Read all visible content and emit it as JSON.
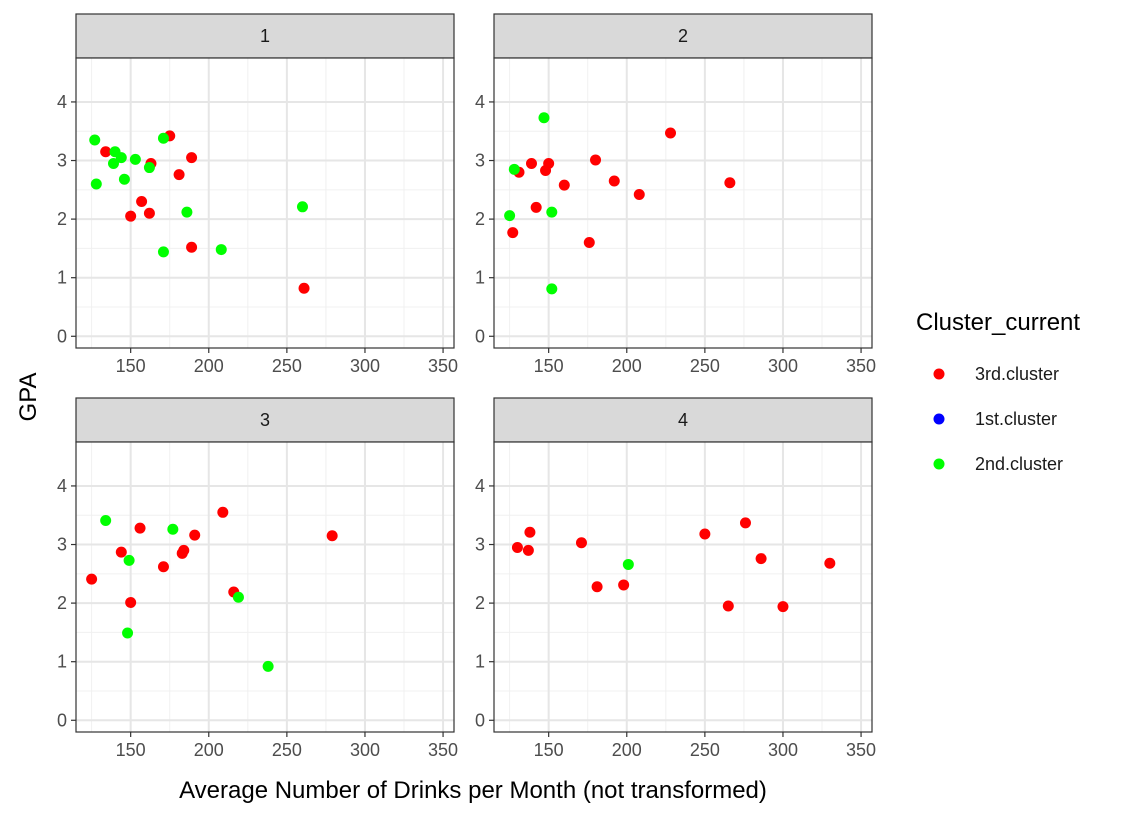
{
  "chart_data": {
    "type": "scatter",
    "facet_var": "",
    "xlabel": "Average Number of Drinks per Month (not transformed)",
    "ylabel": "GPA",
    "xlim": [
      115,
      357
    ],
    "ylim": [
      -0.2,
      4.75
    ],
    "x_ticks": [
      150,
      200,
      250,
      300,
      350
    ],
    "y_ticks": [
      0,
      1,
      2,
      3,
      4
    ],
    "grid": true,
    "legend": {
      "title": "Cluster_current",
      "position": "right",
      "entries": [
        {
          "label": "3rd.cluster",
          "color": "#ff0000"
        },
        {
          "label": "1st.cluster",
          "color": "#0000ff"
        },
        {
          "label": "2nd.cluster",
          "color": "#00ff00"
        }
      ]
    },
    "panels": [
      {
        "label": "1",
        "series": [
          {
            "name": "3rd.cluster",
            "points": [
              [
                134,
                3.15
              ],
              [
                150,
                2.05
              ],
              [
                157,
                2.3
              ],
              [
                162,
                2.1
              ],
              [
                163,
                2.95
              ],
              [
                175,
                3.42
              ],
              [
                181,
                2.76
              ],
              [
                189,
                3.05
              ],
              [
                189,
                1.52
              ],
              [
                261,
                0.82
              ]
            ]
          },
          {
            "name": "1st.cluster",
            "points": []
          },
          {
            "name": "2nd.cluster",
            "points": [
              [
                127,
                3.35
              ],
              [
                128,
                2.6
              ],
              [
                139,
                2.95
              ],
              [
                140,
                3.15
              ],
              [
                144,
                3.05
              ],
              [
                146,
                2.68
              ],
              [
                153,
                3.02
              ],
              [
                162,
                2.88
              ],
              [
                171,
                3.38
              ],
              [
                171,
                1.44
              ],
              [
                186,
                2.12
              ],
              [
                208,
                1.48
              ],
              [
                260,
                2.21
              ]
            ]
          }
        ]
      },
      {
        "label": "2",
        "series": [
          {
            "name": "3rd.cluster",
            "points": [
              [
                127,
                1.77
              ],
              [
                131,
                2.8
              ],
              [
                139,
                2.95
              ],
              [
                142,
                2.2
              ],
              [
                148,
                2.83
              ],
              [
                150,
                2.95
              ],
              [
                160,
                2.58
              ],
              [
                176,
                1.6
              ],
              [
                180,
                3.01
              ],
              [
                192,
                2.65
              ],
              [
                208,
                2.42
              ],
              [
                228,
                3.47
              ],
              [
                266,
                2.62
              ]
            ]
          },
          {
            "name": "1st.cluster",
            "points": []
          },
          {
            "name": "2nd.cluster",
            "points": [
              [
                125,
                2.06
              ],
              [
                128,
                2.85
              ],
              [
                147,
                3.73
              ],
              [
                152,
                2.12
              ],
              [
                152,
                0.81
              ]
            ]
          }
        ]
      },
      {
        "label": "3",
        "series": [
          {
            "name": "3rd.cluster",
            "points": [
              [
                125,
                2.41
              ],
              [
                144,
                2.87
              ],
              [
                150,
                2.01
              ],
              [
                156,
                3.28
              ],
              [
                171,
                2.62
              ],
              [
                183,
                2.85
              ],
              [
                184,
                2.9
              ],
              [
                191,
                3.16
              ],
              [
                209,
                3.55
              ],
              [
                216,
                2.19
              ],
              [
                279,
                3.15
              ]
            ]
          },
          {
            "name": "1st.cluster",
            "points": []
          },
          {
            "name": "2nd.cluster",
            "points": [
              [
                134,
                3.41
              ],
              [
                148,
                1.49
              ],
              [
                149,
                2.73
              ],
              [
                177,
                3.26
              ],
              [
                219,
                2.1
              ],
              [
                238,
                0.92
              ]
            ]
          }
        ]
      },
      {
        "label": "4",
        "series": [
          {
            "name": "3rd.cluster",
            "points": [
              [
                130,
                2.95
              ],
              [
                137,
                2.9
              ],
              [
                138,
                3.21
              ],
              [
                171,
                3.03
              ],
              [
                181,
                2.28
              ],
              [
                198,
                2.31
              ],
              [
                250,
                3.18
              ],
              [
                265,
                1.95
              ],
              [
                276,
                3.37
              ],
              [
                286,
                2.76
              ],
              [
                300,
                1.94
              ],
              [
                330,
                2.68
              ]
            ]
          },
          {
            "name": "1st.cluster",
            "points": []
          },
          {
            "name": "2nd.cluster",
            "points": [
              [
                201,
                2.66
              ]
            ]
          }
        ]
      }
    ]
  }
}
